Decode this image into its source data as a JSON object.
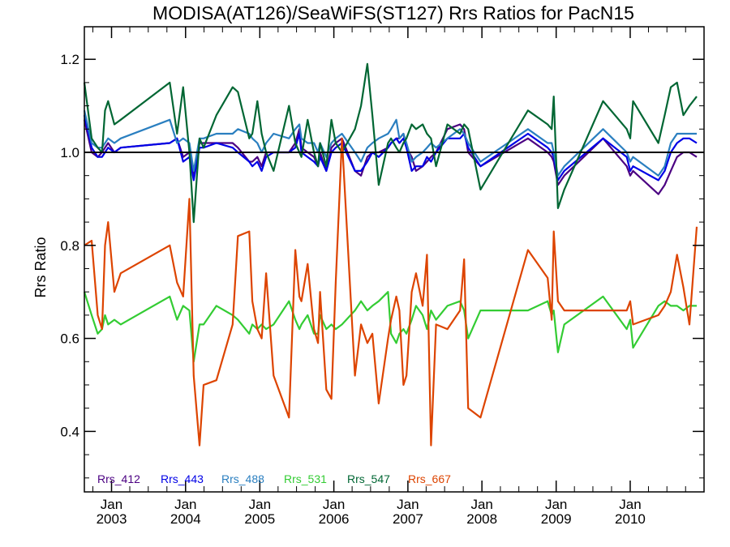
{
  "chart_data": {
    "type": "line",
    "title": "MODISA(AT126)/SeaWiFS(ST127)  Rrs Ratios for PacN15",
    "xlabel": "",
    "ylabel": "Rrs Ratio",
    "xlim": [
      "2002-08-20",
      "2010-12-31"
    ],
    "ylim": [
      0.27,
      1.27
    ],
    "x_ticks": [
      {
        "top": "Jan",
        "bottom": "2003",
        "date": "2003-01-01"
      },
      {
        "top": "Jan",
        "bottom": "2004",
        "date": "2004-01-01"
      },
      {
        "top": "Jan",
        "bottom": "2005",
        "date": "2005-01-01"
      },
      {
        "top": "Jan",
        "bottom": "2006",
        "date": "2006-01-01"
      },
      {
        "top": "Jan",
        "bottom": "2007",
        "date": "2007-01-01"
      },
      {
        "top": "Jan",
        "bottom": "2008",
        "date": "2008-01-01"
      },
      {
        "top": "Jan",
        "bottom": "2009",
        "date": "2009-01-01"
      },
      {
        "top": "Jan",
        "bottom": "2010",
        "date": "2010-01-01"
      }
    ],
    "y_ticks": [
      0.4,
      0.6,
      0.8,
      1.0,
      1.2
    ],
    "y_tick_labels": [
      "0.4",
      "0.6",
      "0.8",
      "1.0",
      "1.2"
    ],
    "reference_line": 1.0,
    "grid": false,
    "legend_position": "bottom-left",
    "x": [
      "2002-08-20",
      "2002-09-25",
      "2002-10-25",
      "2002-11-15",
      "2002-11-30",
      "2002-12-15",
      "2003-01-15",
      "2003-02-15",
      "2003-10-15",
      "2003-11-20",
      "2003-12-20",
      "2004-01-20",
      "2004-02-10",
      "2004-03-10",
      "2004-03-30",
      "2004-06-01",
      "2004-08-20",
      "2004-09-15",
      "2004-11-10",
      "2004-11-25",
      "2004-12-20",
      "2005-01-10",
      "2005-02-01",
      "2005-03-10",
      "2005-05-25",
      "2005-06-25",
      "2005-07-15",
      "2005-07-25",
      "2005-08-25",
      "2005-09-25",
      "2005-10-15",
      "2005-10-25",
      "2005-11-25",
      "2005-12-20",
      "2006-01-10",
      "2006-02-10",
      "2006-04-15",
      "2006-05-15",
      "2006-06-15",
      "2006-07-10",
      "2006-08-10",
      "2006-09-25",
      "2006-10-10",
      "2006-11-05",
      "2006-11-20",
      "2006-12-10",
      "2006-12-25",
      "2007-01-20",
      "2007-02-10",
      "2007-03-15",
      "2007-04-05",
      "2007-04-25",
      "2007-05-20",
      "2007-07-15",
      "2007-09-15",
      "2007-10-05",
      "2007-10-25",
      "2007-12-25",
      "2008-08-15",
      "2008-11-20",
      "2008-12-10",
      "2008-12-20",
      "2009-01-10",
      "2009-02-10",
      "2009-08-20",
      "2009-12-15",
      "2010-01-01",
      "2010-01-15",
      "2010-05-20",
      "2010-06-20",
      "2010-07-20",
      "2010-08-20",
      "2010-09-20",
      "2010-10-20",
      "2010-11-25"
    ],
    "series": [
      {
        "name": "Rrs_412",
        "color": "#4b0082",
        "values": [
          1.07,
          1.0,
          0.99,
          1.0,
          1.01,
          1.02,
          1.0,
          1.01,
          1.02,
          1.03,
          0.99,
          1.0,
          0.95,
          1.02,
          1.02,
          1.02,
          1.02,
          1.01,
          0.98,
          0.98,
          0.99,
          0.97,
          1.0,
          1.0,
          1.0,
          1.02,
          1.05,
          1.01,
          1.0,
          0.99,
          0.97,
          1.0,
          0.96,
          1.01,
          1.02,
          1.03,
          0.96,
          0.95,
          0.99,
          1.0,
          1.0,
          1.01,
          1.02,
          1.03,
          1.03,
          1.04,
          1.01,
          0.99,
          0.96,
          0.97,
          0.98,
          0.99,
          1.0,
          1.05,
          1.06,
          1.05,
          1.0,
          0.97,
          1.03,
          1.0,
          0.99,
          0.98,
          0.93,
          0.95,
          1.03,
          0.97,
          0.95,
          0.96,
          0.91,
          0.93,
          0.96,
          0.99,
          1.0,
          1.0,
          0.99
        ]
      },
      {
        "name": "Rrs_443",
        "color": "#0000e6",
        "values": [
          1.08,
          1.01,
          0.99,
          0.99,
          1.0,
          1.01,
          1.0,
          1.01,
          1.02,
          1.03,
          0.98,
          0.99,
          0.94,
          1.01,
          1.01,
          1.02,
          1.01,
          1.0,
          0.98,
          0.97,
          0.98,
          0.96,
          0.99,
          1.0,
          1.0,
          1.01,
          1.04,
          1.0,
          0.99,
          0.98,
          0.97,
          0.99,
          0.96,
          1.0,
          1.01,
          1.02,
          0.96,
          0.96,
          0.98,
          1.0,
          0.99,
          1.01,
          1.02,
          1.03,
          1.02,
          1.03,
          1.01,
          0.96,
          0.97,
          0.97,
          0.99,
          0.98,
          1.0,
          1.03,
          1.03,
          1.04,
          1.01,
          0.97,
          1.04,
          1.01,
          1.0,
          0.99,
          0.94,
          0.96,
          1.03,
          0.99,
          0.96,
          0.97,
          0.94,
          0.96,
          1.0,
          1.02,
          1.03,
          1.03,
          1.02
        ]
      },
      {
        "name": "Rrs_488",
        "color": "#2a7fc0",
        "values": [
          1.09,
          1.02,
          1.01,
          1.01,
          1.02,
          1.03,
          1.02,
          1.03,
          1.07,
          1.02,
          1.03,
          1.02,
          0.96,
          1.03,
          1.03,
          1.04,
          1.04,
          1.05,
          1.04,
          1.03,
          1.02,
          1.0,
          1.02,
          1.04,
          1.03,
          1.05,
          1.06,
          1.03,
          1.02,
          1.02,
          1.0,
          1.02,
          0.99,
          1.02,
          1.03,
          1.04,
          1.0,
          0.98,
          1.01,
          1.02,
          1.03,
          1.04,
          1.05,
          1.07,
          1.03,
          1.04,
          1.02,
          0.98,
          0.99,
          1.0,
          1.01,
          1.02,
          1.01,
          1.03,
          1.05,
          1.04,
          1.02,
          0.98,
          1.05,
          1.02,
          1.02,
          1.0,
          0.95,
          0.97,
          1.05,
          1.0,
          0.98,
          0.99,
          0.95,
          0.97,
          1.02,
          1.04,
          1.04,
          1.04,
          1.04
        ]
      },
      {
        "name": "Rrs_531",
        "color": "#33cc33",
        "values": [
          0.7,
          0.65,
          0.61,
          0.62,
          0.65,
          0.63,
          0.64,
          0.63,
          0.69,
          0.64,
          0.67,
          0.66,
          0.55,
          0.63,
          0.63,
          0.67,
          0.65,
          0.64,
          0.61,
          0.63,
          0.62,
          0.63,
          0.62,
          0.63,
          0.68,
          0.64,
          0.62,
          0.63,
          0.65,
          0.61,
          0.61,
          0.65,
          0.62,
          0.63,
          0.62,
          0.63,
          0.66,
          0.68,
          0.66,
          0.67,
          0.68,
          0.7,
          0.61,
          0.59,
          0.61,
          0.62,
          0.61,
          0.64,
          0.67,
          0.65,
          0.62,
          0.66,
          0.64,
          0.67,
          0.68,
          0.66,
          0.6,
          0.66,
          0.66,
          0.68,
          0.65,
          0.66,
          0.57,
          0.63,
          0.69,
          0.62,
          0.64,
          0.58,
          0.67,
          0.68,
          0.67,
          0.67,
          0.66,
          0.67,
          0.67
        ]
      },
      {
        "name": "Rrs_547",
        "color": "#006633",
        "values": [
          1.15,
          1.03,
          1.01,
          1.0,
          1.09,
          1.11,
          1.06,
          1.07,
          1.15,
          1.04,
          1.14,
          1.0,
          0.85,
          1.03,
          1.01,
          1.08,
          1.14,
          1.13,
          1.03,
          1.04,
          1.11,
          1.04,
          1.0,
          0.96,
          1.1,
          1.02,
          1.0,
          0.99,
          1.07,
          1.0,
          0.97,
          1.02,
          0.97,
          1.07,
          1.02,
          1.0,
          1.05,
          1.1,
          1.19,
          1.08,
          0.93,
          1.02,
          1.03,
          1.01,
          1.0,
          1.02,
          1.03,
          1.06,
          1.05,
          1.06,
          1.04,
          1.03,
          0.97,
          1.06,
          1.04,
          1.06,
          1.05,
          0.92,
          1.09,
          1.06,
          1.05,
          1.12,
          0.88,
          0.92,
          1.11,
          1.05,
          1.03,
          1.11,
          1.02,
          1.08,
          1.14,
          1.15,
          1.08,
          1.1,
          1.12
        ]
      },
      {
        "name": "Rrs_667",
        "color": "#dd4400",
        "values": [
          0.8,
          0.81,
          0.65,
          0.62,
          0.8,
          0.85,
          0.7,
          0.74,
          0.8,
          0.72,
          0.69,
          0.9,
          0.52,
          0.37,
          0.5,
          0.51,
          0.63,
          0.82,
          0.83,
          0.68,
          0.62,
          0.6,
          0.74,
          0.52,
          0.43,
          0.79,
          0.69,
          0.68,
          0.76,
          0.62,
          0.59,
          0.7,
          0.49,
          0.47,
          0.72,
          1.03,
          0.52,
          0.63,
          0.59,
          0.61,
          0.46,
          0.6,
          0.64,
          0.69,
          0.66,
          0.5,
          0.52,
          0.7,
          0.74,
          0.67,
          0.78,
          0.37,
          0.63,
          0.62,
          0.66,
          0.77,
          0.45,
          0.43,
          0.79,
          0.73,
          0.64,
          0.83,
          0.68,
          0.66,
          0.66,
          0.66,
          0.68,
          0.63,
          0.65,
          0.67,
          0.7,
          0.78,
          0.71,
          0.63,
          0.84
        ]
      }
    ]
  }
}
